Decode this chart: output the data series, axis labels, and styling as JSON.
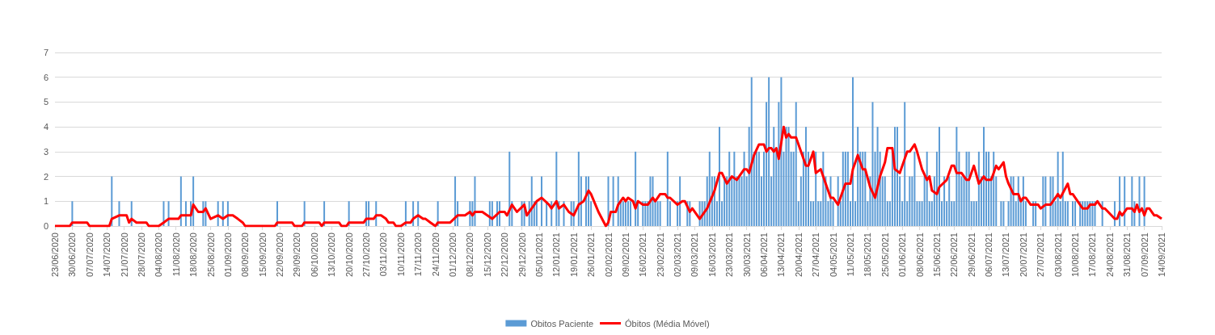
{
  "chart_data": {
    "type": "bar",
    "x": [
      "2020-06-23",
      "2020-06-24",
      "2020-06-25",
      "2020-06-26",
      "2020-06-27",
      "2020-06-28",
      "2020-06-29",
      "2020-06-30",
      "2020-07-01",
      "2020-07-02",
      "2020-07-03",
      "2020-07-04",
      "2020-07-05",
      "2020-07-06",
      "2020-07-07",
      "2020-07-08",
      "2020-07-09",
      "2020-07-10",
      "2020-07-11",
      "2020-07-12",
      "2020-07-13",
      "2020-07-14",
      "2020-07-15",
      "2020-07-16",
      "2020-07-17",
      "2020-07-18",
      "2020-07-19",
      "2020-07-20",
      "2020-07-21",
      "2020-07-22",
      "2020-07-23",
      "2020-07-24",
      "2020-07-25",
      "2020-07-26",
      "2020-07-27",
      "2020-07-28",
      "2020-07-29",
      "2020-07-30",
      "2020-07-31",
      "2020-08-01",
      "2020-08-02",
      "2020-08-03",
      "2020-08-04",
      "2020-08-05",
      "2020-08-06",
      "2020-08-07",
      "2020-08-08",
      "2020-08-09",
      "2020-08-10",
      "2020-08-11",
      "2020-08-12",
      "2020-08-13",
      "2020-08-14",
      "2020-08-15",
      "2020-08-16",
      "2020-08-17",
      "2020-08-18",
      "2020-08-19",
      "2020-08-20",
      "2020-08-21",
      "2020-08-22",
      "2020-08-23",
      "2020-08-24",
      "2020-08-25",
      "2020-08-26",
      "2020-08-27",
      "2020-08-28",
      "2020-08-29",
      "2020-08-30",
      "2020-08-31",
      "2020-09-01",
      "2020-09-02",
      "2020-09-03",
      "2020-09-04",
      "2020-09-05",
      "2020-09-06",
      "2020-09-07",
      "2020-09-08",
      "2020-09-09",
      "2020-09-10",
      "2020-09-11",
      "2020-09-12",
      "2020-09-13",
      "2020-09-14",
      "2020-09-15",
      "2020-09-16",
      "2020-09-17",
      "2020-09-18",
      "2020-09-19",
      "2020-09-20",
      "2020-09-21",
      "2020-09-22",
      "2020-09-23",
      "2020-09-24",
      "2020-09-25",
      "2020-09-26",
      "2020-09-27",
      "2020-09-28",
      "2020-09-29",
      "2020-09-30",
      "2020-10-01",
      "2020-10-02",
      "2020-10-03",
      "2020-10-04",
      "2020-10-05",
      "2020-10-06",
      "2020-10-07",
      "2020-10-08",
      "2020-10-09",
      "2020-10-10",
      "2020-10-11",
      "2020-10-12",
      "2020-10-13",
      "2020-10-14",
      "2020-10-15",
      "2020-10-16",
      "2020-10-17",
      "2020-10-18",
      "2020-10-19",
      "2020-10-20",
      "2020-10-21",
      "2020-10-22",
      "2020-10-23",
      "2020-10-24",
      "2020-10-25",
      "2020-10-26",
      "2020-10-27",
      "2020-10-28",
      "2020-10-29",
      "2020-10-30",
      "2020-10-31",
      "2020-11-01",
      "2020-11-02",
      "2020-11-03",
      "2020-11-04",
      "2020-11-05",
      "2020-11-06",
      "2020-11-07",
      "2020-11-08",
      "2020-11-09",
      "2020-11-10",
      "2020-11-11",
      "2020-11-12",
      "2020-11-13",
      "2020-11-14",
      "2020-11-15",
      "2020-11-16",
      "2020-11-17",
      "2020-11-18",
      "2020-11-19",
      "2020-11-20",
      "2020-11-21",
      "2020-11-22",
      "2020-11-23",
      "2020-11-24",
      "2020-11-25",
      "2020-11-26",
      "2020-11-27",
      "2020-11-28",
      "2020-11-29",
      "2020-11-30",
      "2020-12-01",
      "2020-12-02",
      "2020-12-03",
      "2020-12-04",
      "2020-12-05",
      "2020-12-06",
      "2020-12-07",
      "2020-12-08",
      "2020-12-09",
      "2020-12-10",
      "2020-12-11",
      "2020-12-12",
      "2020-12-13",
      "2020-12-14",
      "2020-12-15",
      "2020-12-16",
      "2020-12-17",
      "2020-12-18",
      "2020-12-19",
      "2020-12-20",
      "2020-12-21",
      "2020-12-22",
      "2020-12-23",
      "2020-12-24",
      "2020-12-25",
      "2020-12-26",
      "2020-12-27",
      "2020-12-28",
      "2020-12-29",
      "2020-12-30",
      "2020-12-31",
      "2021-01-01",
      "2021-01-02",
      "2021-01-03",
      "2021-01-04",
      "2021-01-05",
      "2021-01-06",
      "2021-01-07",
      "2021-01-08",
      "2021-01-09",
      "2021-01-10",
      "2021-01-11",
      "2021-01-12",
      "2021-01-13",
      "2021-01-14",
      "2021-01-15",
      "2021-01-16",
      "2021-01-17",
      "2021-01-18",
      "2021-01-19",
      "2021-01-20",
      "2021-01-21",
      "2021-01-22",
      "2021-01-23",
      "2021-01-24",
      "2021-01-25",
      "2021-01-26",
      "2021-01-27",
      "2021-01-28",
      "2021-01-29",
      "2021-01-30",
      "2021-01-31",
      "2021-02-01",
      "2021-02-02",
      "2021-02-03",
      "2021-02-04",
      "2021-02-05",
      "2021-02-06",
      "2021-02-07",
      "2021-02-08",
      "2021-02-09",
      "2021-02-10",
      "2021-02-11",
      "2021-02-12",
      "2021-02-13",
      "2021-02-14",
      "2021-02-15",
      "2021-02-16",
      "2021-02-17",
      "2021-02-18",
      "2021-02-19",
      "2021-02-20",
      "2021-02-21",
      "2021-02-22",
      "2021-02-23",
      "2021-02-24",
      "2021-02-25",
      "2021-02-26",
      "2021-02-27",
      "2021-02-28",
      "2021-03-01",
      "2021-03-02",
      "2021-03-03",
      "2021-03-04",
      "2021-03-05",
      "2021-03-06",
      "2021-03-07",
      "2021-03-08",
      "2021-03-09",
      "2021-03-10",
      "2021-03-11",
      "2021-03-12",
      "2021-03-13",
      "2021-03-14",
      "2021-03-15",
      "2021-03-16",
      "2021-03-17",
      "2021-03-18",
      "2021-03-19",
      "2021-03-20",
      "2021-03-21",
      "2021-03-22",
      "2021-03-23",
      "2021-03-24",
      "2021-03-25",
      "2021-03-26",
      "2021-03-27",
      "2021-03-28",
      "2021-03-29",
      "2021-03-30",
      "2021-03-31",
      "2021-04-01",
      "2021-04-02",
      "2021-04-03",
      "2021-04-04",
      "2021-04-05",
      "2021-04-06",
      "2021-04-07",
      "2021-04-08",
      "2021-04-09",
      "2021-04-10",
      "2021-04-11",
      "2021-04-12",
      "2021-04-13",
      "2021-04-14",
      "2021-04-15",
      "2021-04-16",
      "2021-04-17",
      "2021-04-18",
      "2021-04-19",
      "2021-04-20",
      "2021-04-21",
      "2021-04-22",
      "2021-04-23",
      "2021-04-24",
      "2021-04-25",
      "2021-04-26",
      "2021-04-27",
      "2021-04-28",
      "2021-04-29",
      "2021-04-30",
      "2021-05-01",
      "2021-05-02",
      "2021-05-03",
      "2021-05-04",
      "2021-05-05",
      "2021-05-06",
      "2021-05-07",
      "2021-05-08",
      "2021-05-09",
      "2021-05-10",
      "2021-05-11",
      "2021-05-12",
      "2021-05-13",
      "2021-05-14",
      "2021-05-15",
      "2021-05-16",
      "2021-05-17",
      "2021-05-18",
      "2021-05-19",
      "2021-05-20",
      "2021-05-21",
      "2021-05-22",
      "2021-05-23",
      "2021-05-24",
      "2021-05-25",
      "2021-05-26",
      "2021-05-27",
      "2021-05-28",
      "2021-05-29",
      "2021-05-30",
      "2021-05-31",
      "2021-06-01",
      "2021-06-02",
      "2021-06-03",
      "2021-06-04",
      "2021-06-05",
      "2021-06-06",
      "2021-06-07",
      "2021-06-08",
      "2021-06-09",
      "2021-06-10",
      "2021-06-11",
      "2021-06-12",
      "2021-06-13",
      "2021-06-14",
      "2021-06-15",
      "2021-06-16",
      "2021-06-17",
      "2021-06-18",
      "2021-06-19",
      "2021-06-20",
      "2021-06-21",
      "2021-06-22",
      "2021-06-23",
      "2021-06-24",
      "2021-06-25",
      "2021-06-26",
      "2021-06-27",
      "2021-06-28",
      "2021-06-29",
      "2021-06-30",
      "2021-07-01",
      "2021-07-02",
      "2021-07-03",
      "2021-07-04",
      "2021-07-05",
      "2021-07-06",
      "2021-07-07",
      "2021-07-08",
      "2021-07-09",
      "2021-07-10",
      "2021-07-11",
      "2021-07-12",
      "2021-07-13",
      "2021-07-14",
      "2021-07-15",
      "2021-07-16",
      "2021-07-17",
      "2021-07-18",
      "2021-07-19",
      "2021-07-20",
      "2021-07-21",
      "2021-07-22",
      "2021-07-23",
      "2021-07-24",
      "2021-07-25",
      "2021-07-26",
      "2021-07-27",
      "2021-07-28",
      "2021-07-29",
      "2021-07-30",
      "2021-07-31",
      "2021-08-01",
      "2021-08-02",
      "2021-08-03",
      "2021-08-04",
      "2021-08-05",
      "2021-08-06",
      "2021-08-07",
      "2021-08-08",
      "2021-08-09",
      "2021-08-10",
      "2021-08-11",
      "2021-08-12",
      "2021-08-13",
      "2021-08-14",
      "2021-08-15",
      "2021-08-16",
      "2021-08-17",
      "2021-08-18",
      "2021-08-19",
      "2021-08-20",
      "2021-08-21",
      "2021-08-22",
      "2021-08-23",
      "2021-08-24",
      "2021-08-25",
      "2021-08-26",
      "2021-08-27",
      "2021-08-28",
      "2021-08-29",
      "2021-08-30",
      "2021-08-31",
      "2021-09-01",
      "2021-09-02",
      "2021-09-03",
      "2021-09-04",
      "2021-09-05",
      "2021-09-06",
      "2021-09-07",
      "2021-09-08",
      "2021-09-09",
      "2021-09-10",
      "2021-09-11",
      "2021-09-12",
      "2021-09-13",
      "2021-09-14"
    ],
    "series": [
      {
        "name": "Obitos Paciente",
        "color": "#5b9bd5",
        "values": [
          0,
          0,
          0,
          0,
          0,
          0,
          0,
          1,
          0,
          0,
          0,
          0,
          0,
          0,
          0,
          0,
          0,
          0,
          0,
          0,
          0,
          0,
          0,
          2,
          0,
          0,
          1,
          0,
          0,
          0,
          0,
          1,
          0,
          0,
          0,
          0,
          0,
          0,
          0,
          0,
          0,
          0,
          0,
          0,
          1,
          0,
          1,
          0,
          0,
          0,
          0,
          2,
          0,
          1,
          0,
          1,
          2,
          0,
          0,
          0,
          1,
          1,
          0,
          0,
          0,
          0,
          1,
          0,
          1,
          0,
          1,
          0,
          0,
          0,
          0,
          0,
          0,
          0,
          0,
          0,
          0,
          0,
          0,
          0,
          0,
          0,
          0,
          0,
          0,
          0,
          1,
          0,
          0,
          0,
          0,
          0,
          0,
          0,
          0,
          0,
          0,
          1,
          0,
          0,
          0,
          0,
          0,
          0,
          0,
          1,
          0,
          0,
          0,
          0,
          0,
          0,
          0,
          0,
          0,
          1,
          0,
          0,
          0,
          0,
          0,
          0,
          1,
          1,
          0,
          0,
          1,
          0,
          0,
          0,
          0,
          0,
          0,
          0,
          0,
          0,
          0,
          0,
          1,
          0,
          0,
          1,
          0,
          1,
          0,
          0,
          0,
          0,
          0,
          0,
          0,
          1,
          0,
          0,
          0,
          0,
          0,
          0,
          2,
          1,
          0,
          0,
          0,
          0,
          1,
          1,
          2,
          0,
          0,
          0,
          0,
          0,
          1,
          1,
          0,
          1,
          1,
          0,
          0,
          0,
          3,
          1,
          0,
          0,
          0,
          1,
          1,
          0,
          1,
          2,
          1,
          1,
          0,
          2,
          0,
          1,
          0,
          1,
          0,
          3,
          1,
          0,
          1,
          0,
          0,
          1,
          1,
          0,
          3,
          2,
          0,
          2,
          2,
          1,
          0,
          0,
          0,
          0,
          0,
          0,
          2,
          0,
          2,
          0,
          2,
          1,
          1,
          1,
          1,
          1,
          0,
          3,
          1,
          0,
          1,
          1,
          1,
          2,
          2,
          1,
          1,
          1,
          0,
          0,
          3,
          1,
          0,
          0,
          1,
          2,
          0,
          0,
          1,
          1,
          0,
          0,
          0,
          1,
          1,
          1,
          2,
          3,
          2,
          2,
          1,
          4,
          1,
          2,
          2,
          3,
          2,
          3,
          2,
          2,
          2,
          3,
          2,
          4,
          6,
          3,
          3,
          3,
          2,
          3,
          5,
          6,
          2,
          4,
          3,
          5,
          6,
          3,
          4,
          4,
          3,
          3,
          5,
          1,
          2,
          3,
          4,
          3,
          1,
          1,
          3,
          1,
          1,
          3,
          2,
          1,
          2,
          1,
          0,
          2,
          1,
          3,
          3,
          3,
          1,
          6,
          1,
          4,
          3,
          3,
          3,
          1,
          2,
          5,
          3,
          4,
          3,
          2,
          2,
          1,
          1,
          3,
          4,
          4,
          2,
          1,
          5,
          1,
          2,
          2,
          3,
          1,
          1,
          1,
          2,
          3,
          1,
          1,
          2,
          3,
          4,
          1,
          2,
          1,
          2,
          1,
          1,
          4,
          3,
          2,
          2,
          3,
          3,
          1,
          1,
          1,
          3,
          2,
          4,
          3,
          3,
          2,
          3,
          2,
          0,
          1,
          1,
          0,
          1,
          2,
          2,
          1,
          2,
          1,
          2,
          1,
          0,
          0,
          1,
          1,
          0,
          0,
          2,
          2,
          0,
          2,
          2,
          1,
          3,
          1,
          3,
          1,
          1,
          0,
          1,
          1,
          0,
          1,
          1,
          1,
          1,
          1,
          1,
          1,
          0,
          0,
          1,
          0,
          0,
          0,
          0,
          1,
          0,
          2,
          0,
          2,
          0,
          0,
          2,
          1,
          0,
          2,
          0,
          2,
          0,
          0,
          0,
          0,
          0,
          0,
          0
        ]
      },
      {
        "name": "Óbitos (Média Móvel)",
        "type": "line",
        "color": "#ff0000",
        "x": [
          "2020-06-23",
          "2020-06-29",
          "2020-06-30",
          "2020-07-06",
          "2020-07-07",
          "2020-07-15",
          "2020-07-16",
          "2020-07-19",
          "2020-07-22",
          "2020-07-23",
          "2020-07-24",
          "2020-07-26",
          "2020-07-30",
          "2020-07-31",
          "2020-08-04",
          "2020-08-06",
          "2020-08-08",
          "2020-08-12",
          "2020-08-13",
          "2020-08-17",
          "2020-08-18",
          "2020-08-20",
          "2020-08-22",
          "2020-08-23",
          "2020-08-25",
          "2020-08-28",
          "2020-08-30",
          "2020-09-01",
          "2020-09-03",
          "2020-09-05",
          "2020-09-07",
          "2020-09-08",
          "2020-09-20",
          "2020-09-21",
          "2020-09-27",
          "2020-09-28",
          "2020-10-01",
          "2020-10-02",
          "2020-10-08",
          "2020-10-09",
          "2020-10-10",
          "2020-10-16",
          "2020-10-17",
          "2020-10-19",
          "2020-10-20",
          "2020-10-26",
          "2020-10-27",
          "2020-10-30",
          "2020-10-31",
          "2020-11-02",
          "2020-11-04",
          "2020-11-05",
          "2020-11-07",
          "2020-11-08",
          "2020-11-10",
          "2020-11-12",
          "2020-11-14",
          "2020-11-15",
          "2020-11-17",
          "2020-11-19",
          "2020-11-20",
          "2020-11-22",
          "2020-11-24",
          "2020-11-25",
          "2020-11-30",
          "2020-12-03",
          "2020-12-06",
          "2020-12-08",
          "2020-12-09",
          "2020-12-10",
          "2020-12-13",
          "2020-12-15",
          "2020-12-17",
          "2020-12-20",
          "2020-12-22",
          "2020-12-23",
          "2020-12-25",
          "2020-12-27",
          "2020-12-30",
          "2020-12-31",
          "2021-01-02",
          "2021-01-04",
          "2021-01-06",
          "2021-01-09",
          "2021-01-10",
          "2021-01-12",
          "2021-01-13",
          "2021-01-15",
          "2021-01-17",
          "2021-01-19",
          "2021-01-21",
          "2021-01-23",
          "2021-01-25",
          "2021-01-26",
          "2021-01-29",
          "2021-02-01",
          "2021-02-02",
          "2021-02-03",
          "2021-02-05",
          "2021-02-06",
          "2021-02-08",
          "2021-02-09",
          "2021-02-10",
          "2021-02-12",
          "2021-02-13",
          "2021-02-14",
          "2021-02-16",
          "2021-02-18",
          "2021-02-20",
          "2021-02-21",
          "2021-02-23",
          "2021-02-25",
          "2021-02-26",
          "2021-02-27",
          "2021-03-02",
          "2021-03-04",
          "2021-03-05",
          "2021-03-07",
          "2021-03-08",
          "2021-03-11",
          "2021-03-14",
          "2021-03-17",
          "2021-03-19",
          "2021-03-20",
          "2021-03-22",
          "2021-03-24",
          "2021-03-26",
          "2021-03-29",
          "2021-03-30",
          "2021-03-31",
          "2021-04-02",
          "2021-04-04",
          "2021-04-06",
          "2021-04-07",
          "2021-04-08",
          "2021-04-09",
          "2021-04-10",
          "2021-04-11",
          "2021-04-12",
          "2021-04-14",
          "2021-04-15",
          "2021-04-16",
          "2021-04-17",
          "2021-04-19",
          "2021-04-21",
          "2021-04-23",
          "2021-04-24",
          "2021-04-26",
          "2021-04-27",
          "2021-04-29",
          "2021-05-01",
          "2021-05-03",
          "2021-05-04",
          "2021-05-06",
          "2021-05-08",
          "2021-05-09",
          "2021-05-11",
          "2021-05-12",
          "2021-05-14",
          "2021-05-16",
          "2021-05-17",
          "2021-05-19",
          "2021-05-21",
          "2021-05-23",
          "2021-05-25",
          "2021-05-26",
          "2021-05-28",
          "2021-05-29",
          "2021-05-31",
          "2021-06-01",
          "2021-06-03",
          "2021-06-04",
          "2021-06-06",
          "2021-06-07",
          "2021-06-09",
          "2021-06-11",
          "2021-06-12",
          "2021-06-13",
          "2021-06-15",
          "2021-06-16",
          "2021-06-19",
          "2021-06-21",
          "2021-06-22",
          "2021-06-23",
          "2021-06-25",
          "2021-06-27",
          "2021-06-28",
          "2021-06-30",
          "2021-07-02",
          "2021-07-03",
          "2021-07-04",
          "2021-07-05",
          "2021-07-07",
          "2021-07-08",
          "2021-07-09",
          "2021-07-10",
          "2021-07-12",
          "2021-07-13",
          "2021-07-14",
          "2021-07-16",
          "2021-07-18",
          "2021-07-19",
          "2021-07-20",
          "2021-07-21",
          "2021-07-23",
          "2021-07-25",
          "2021-07-26",
          "2021-07-27",
          "2021-07-29",
          "2021-07-31",
          "2021-08-02",
          "2021-08-03",
          "2021-08-04",
          "2021-08-07",
          "2021-08-08",
          "2021-08-09",
          "2021-08-11",
          "2021-08-13",
          "2021-08-15",
          "2021-08-16",
          "2021-08-18",
          "2021-08-19",
          "2021-08-21",
          "2021-08-22",
          "2021-08-26",
          "2021-08-27",
          "2021-08-28",
          "2021-08-29",
          "2021-08-31",
          "2021-09-02",
          "2021-09-03",
          "2021-09-04",
          "2021-09-05",
          "2021-09-06",
          "2021-09-07",
          "2021-09-08",
          "2021-09-09",
          "2021-09-11",
          "2021-09-12",
          "2021-09-14"
        ],
        "values": [
          0,
          0,
          0.14,
          0.14,
          0,
          0,
          0.29,
          0.43,
          0.43,
          0.14,
          0.29,
          0.14,
          0.14,
          0,
          0,
          0.14,
          0.29,
          0.29,
          0.43,
          0.43,
          0.86,
          0.57,
          0.57,
          0.71,
          0.29,
          0.43,
          0.29,
          0.43,
          0.43,
          0.29,
          0.14,
          0,
          0,
          0.14,
          0.14,
          0,
          0,
          0.14,
          0.14,
          0,
          0.14,
          0.14,
          0,
          0,
          0.14,
          0.14,
          0.29,
          0.29,
          0.43,
          0.43,
          0.29,
          0.14,
          0.14,
          0,
          0,
          0.14,
          0.14,
          0.29,
          0.43,
          0.29,
          0.29,
          0.14,
          0,
          0.14,
          0.14,
          0.43,
          0.43,
          0.57,
          0.43,
          0.57,
          0.57,
          0.43,
          0.29,
          0.57,
          0.57,
          0.43,
          0.86,
          0.57,
          0.86,
          0.43,
          0.71,
          1,
          1.14,
          0.86,
          0.71,
          1,
          0.71,
          0.86,
          0.57,
          0.43,
          0.86,
          1,
          1.43,
          1.29,
          0.57,
          0,
          0.14,
          0.57,
          0.57,
          0.86,
          1.14,
          1,
          1.14,
          1,
          0.71,
          1,
          0.86,
          0.86,
          1.14,
          1,
          1.29,
          1.29,
          1.14,
          1.14,
          0.86,
          1,
          1,
          0.57,
          0.71,
          0.29,
          0.71,
          1.43,
          2.14,
          2.14,
          1.71,
          2,
          1.86,
          2.29,
          2.29,
          2.14,
          2.86,
          3.29,
          3.29,
          3,
          3.14,
          3.14,
          3,
          3.14,
          2.71,
          4,
          3.57,
          3.71,
          3.57,
          3.57,
          3,
          2.43,
          2.43,
          3,
          2.14,
          2.29,
          1.71,
          1.14,
          1.14,
          0.86,
          1.43,
          1.71,
          1.71,
          2.29,
          2.86,
          2.29,
          2.29,
          1.57,
          1.14,
          2,
          2.57,
          3.14,
          3.14,
          2.29,
          2.14,
          2.43,
          3,
          3,
          3.29,
          3,
          2.29,
          1.86,
          2,
          1.43,
          1.29,
          1.57,
          1.86,
          2.43,
          2.43,
          2.14,
          2.14,
          1.86,
          1.86,
          2.43,
          1.71,
          1.86,
          2,
          1.86,
          1.86,
          2.14,
          2.43,
          2.29,
          2.57,
          2,
          1.71,
          1.29,
          1.29,
          1,
          1.14,
          1.14,
          0.86,
          0.86,
          0.86,
          0.71,
          0.86,
          0.86,
          1.14,
          1.29,
          1.14,
          1.71,
          1.29,
          1.29,
          1,
          0.71,
          0.71,
          0.86,
          0.86,
          1,
          0.71,
          0.71,
          0.29,
          0.29,
          0.57,
          0.43,
          0.71,
          0.71,
          0.57,
          0.86,
          0.57,
          0.71,
          0.43,
          0.71,
          0.71,
          0.43,
          0.43,
          0.29
        ]
      }
    ],
    "xlim": [
      "2020-06-23",
      "2021-09-14"
    ],
    "xticks": [
      {
        "value": "2020-06-23",
        "label": "23/06/2020"
      },
      {
        "value": "2020-06-30",
        "label": "30/06/2020"
      },
      {
        "value": "2020-07-07",
        "label": "07/07/2020"
      },
      {
        "value": "2020-07-14",
        "label": "14/07/2020"
      },
      {
        "value": "2020-07-21",
        "label": "21/07/2020"
      },
      {
        "value": "2020-07-28",
        "label": "28/07/2020"
      },
      {
        "value": "2020-08-04",
        "label": "04/08/2020"
      },
      {
        "value": "2020-08-11",
        "label": "11/08/2020"
      },
      {
        "value": "2020-08-18",
        "label": "18/08/2020"
      },
      {
        "value": "2020-08-25",
        "label": "25/08/2020"
      },
      {
        "value": "2020-09-01",
        "label": "01/09/2020"
      },
      {
        "value": "2020-09-08",
        "label": "08/09/2020"
      },
      {
        "value": "2020-09-15",
        "label": "15/09/2020"
      },
      {
        "value": "2020-09-22",
        "label": "22/09/2020"
      },
      {
        "value": "2020-09-29",
        "label": "29/09/2020"
      },
      {
        "value": "2020-10-06",
        "label": "06/10/2020"
      },
      {
        "value": "2020-10-13",
        "label": "13/10/2020"
      },
      {
        "value": "2020-10-20",
        "label": "20/10/2020"
      },
      {
        "value": "2020-10-27",
        "label": "27/10/2020"
      },
      {
        "value": "2020-11-03",
        "label": "03/11/2020"
      },
      {
        "value": "2020-11-10",
        "label": "10/11/2020"
      },
      {
        "value": "2020-11-17",
        "label": "17/11/2020"
      },
      {
        "value": "2020-11-24",
        "label": "24/11/2020"
      },
      {
        "value": "2020-12-01",
        "label": "01/12/2020"
      },
      {
        "value": "2020-12-08",
        "label": "08/12/2020"
      },
      {
        "value": "2020-12-15",
        "label": "15/12/2020"
      },
      {
        "value": "2020-12-22",
        "label": "22/12/2020"
      },
      {
        "value": "2020-12-29",
        "label": "29/12/2020"
      },
      {
        "value": "2021-01-05",
        "label": "05/01/2021"
      },
      {
        "value": "2021-01-12",
        "label": "12/01/2021"
      },
      {
        "value": "2021-01-19",
        "label": "19/01/2021"
      },
      {
        "value": "2021-01-26",
        "label": "26/01/2021"
      },
      {
        "value": "2021-02-02",
        "label": "02/02/2021"
      },
      {
        "value": "2021-02-09",
        "label": "09/02/2021"
      },
      {
        "value": "2021-02-16",
        "label": "16/02/2021"
      },
      {
        "value": "2021-02-23",
        "label": "23/02/2021"
      },
      {
        "value": "2021-03-02",
        "label": "02/03/2021"
      },
      {
        "value": "2021-03-09",
        "label": "09/03/2021"
      },
      {
        "value": "2021-03-16",
        "label": "16/03/2021"
      },
      {
        "value": "2021-03-23",
        "label": "23/03/2021"
      },
      {
        "value": "2021-03-30",
        "label": "30/03/2021"
      },
      {
        "value": "2021-04-06",
        "label": "06/04/2021"
      },
      {
        "value": "2021-04-13",
        "label": "13/04/2021"
      },
      {
        "value": "2021-04-20",
        "label": "20/04/2021"
      },
      {
        "value": "2021-04-27",
        "label": "27/04/2021"
      },
      {
        "value": "2021-05-04",
        "label": "04/05/2021"
      },
      {
        "value": "2021-05-11",
        "label": "11/05/2021"
      },
      {
        "value": "2021-05-18",
        "label": "18/05/2021"
      },
      {
        "value": "2021-05-25",
        "label": "25/05/2021"
      },
      {
        "value": "2021-06-01",
        "label": "01/06/2021"
      },
      {
        "value": "2021-06-08",
        "label": "08/06/2021"
      },
      {
        "value": "2021-06-15",
        "label": "15/06/2021"
      },
      {
        "value": "2021-06-22",
        "label": "22/06/2021"
      },
      {
        "value": "2021-06-29",
        "label": "29/06/2021"
      },
      {
        "value": "2021-07-06",
        "label": "06/07/2021"
      },
      {
        "value": "2021-07-13",
        "label": "13/07/2021"
      },
      {
        "value": "2021-07-20",
        "label": "20/07/2021"
      },
      {
        "value": "2021-07-27",
        "label": "27/07/2021"
      },
      {
        "value": "2021-08-03",
        "label": "03/08/2021"
      },
      {
        "value": "2021-08-10",
        "label": "10/08/2021"
      },
      {
        "value": "2021-08-17",
        "label": "17/08/2021"
      },
      {
        "value": "2021-08-24",
        "label": "24/08/2021"
      },
      {
        "value": "2021-08-31",
        "label": "31/08/2021"
      },
      {
        "value": "2021-09-07",
        "label": "07/09/2021"
      },
      {
        "value": "2021-09-14",
        "label": "14/09/2021"
      }
    ],
    "ylim": [
      0,
      7
    ],
    "yticks": [
      0,
      1,
      2,
      3,
      4,
      5,
      6,
      7
    ],
    "grid": "y",
    "legend": "bottom",
    "marker": "none"
  }
}
